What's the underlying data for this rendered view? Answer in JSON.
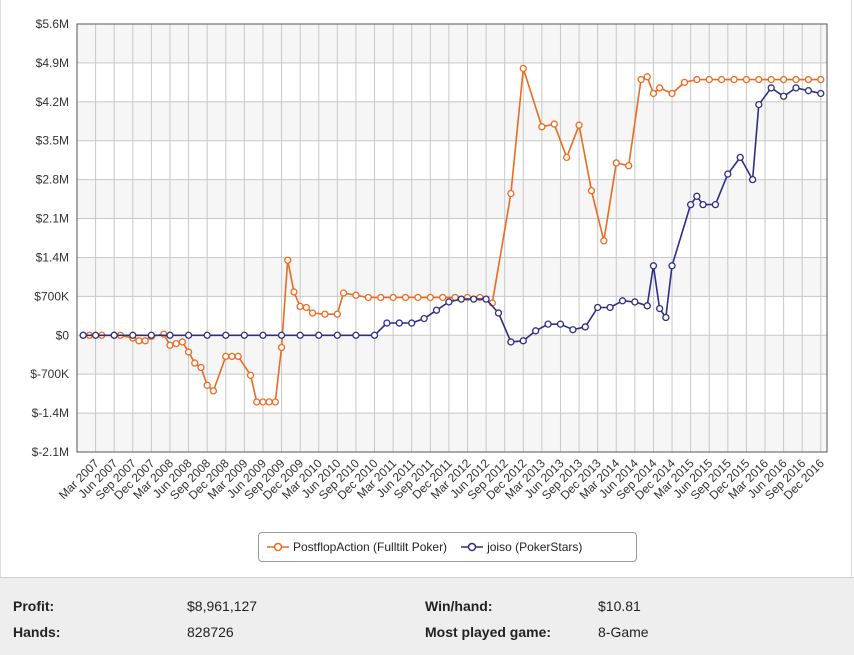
{
  "chart_data": {
    "type": "line",
    "ylabel": "",
    "xlabel": "",
    "ylim": [
      -2100000,
      5600000
    ],
    "y_ticks": [
      "$5.6M",
      "$4.9M",
      "$4.2M",
      "$3.5M",
      "$2.8M",
      "$2.1M",
      "$1.4M",
      "$700K",
      "$0",
      "$-700K",
      "$-1.4M",
      "$-2.1M"
    ],
    "y_tick_values": [
      5600000,
      4900000,
      4200000,
      3500000,
      2800000,
      2100000,
      1400000,
      700000,
      0,
      -700000,
      -1400000,
      -2100000
    ],
    "x_range": [
      "2006-12",
      "2017-01"
    ],
    "x_ticks": [
      "Mar 2007",
      "Jun 2007",
      "Sep 2007",
      "Dec 2007",
      "Mar 2008",
      "Jun 2008",
      "Sep 2008",
      "Dec 2008",
      "Mar 2009",
      "Jun 2009",
      "Sep 2009",
      "Dec 2009",
      "Mar 2010",
      "Jun 2010",
      "Sep 2010",
      "Dec 2010",
      "Mar 2011",
      "Jun 2011",
      "Sep 2011",
      "Dec 2011",
      "Mar 2012",
      "Jun 2012",
      "Sep 2012",
      "Dec 2012",
      "Mar 2013",
      "Jun 2013",
      "Sep 2013",
      "Dec 2013",
      "Mar 2014",
      "Jun 2014",
      "Sep 2014",
      "Dec 2014",
      "Mar 2015",
      "Jun 2015",
      "Sep 2015",
      "Dec 2015",
      "Mar 2016",
      "Jun 2016",
      "Sep 2016",
      "Dec 2016"
    ],
    "x_tick_values": [
      "2007-03",
      "2007-06",
      "2007-09",
      "2007-12",
      "2008-03",
      "2008-06",
      "2008-09",
      "2008-12",
      "2009-03",
      "2009-06",
      "2009-09",
      "2009-12",
      "2010-03",
      "2010-06",
      "2010-09",
      "2010-12",
      "2011-03",
      "2011-06",
      "2011-09",
      "2011-12",
      "2012-03",
      "2012-06",
      "2012-09",
      "2012-12",
      "2013-03",
      "2013-06",
      "2013-09",
      "2013-12",
      "2014-03",
      "2014-06",
      "2014-09",
      "2014-12",
      "2015-03",
      "2015-06",
      "2015-09",
      "2015-12",
      "2016-03",
      "2016-06",
      "2016-09",
      "2016-12"
    ],
    "grid": true,
    "legend_position": "bottom-center",
    "series": [
      {
        "name": "PostflopAction (Fulltilt Poker)",
        "color": "#ed6a1f",
        "points": [
          [
            "2007-01",
            0
          ],
          [
            "2007-02",
            0
          ],
          [
            "2007-04",
            0
          ],
          [
            "2007-06",
            0
          ],
          [
            "2007-07",
            0
          ],
          [
            "2007-09",
            -50000
          ],
          [
            "2007-10",
            -100000
          ],
          [
            "2007-11",
            -100000
          ],
          [
            "2007-12",
            -20000
          ],
          [
            "2008-02",
            20000
          ],
          [
            "2008-03",
            -180000
          ],
          [
            "2008-04",
            -150000
          ],
          [
            "2008-05",
            -120000
          ],
          [
            "2008-06",
            -300000
          ],
          [
            "2008-07",
            -500000
          ],
          [
            "2008-08",
            -580000
          ],
          [
            "2008-09",
            -900000
          ],
          [
            "2008-10",
            -1000000
          ],
          [
            "2008-12",
            -380000
          ],
          [
            "2009-01",
            -380000
          ],
          [
            "2009-02",
            -380000
          ],
          [
            "2009-04",
            -720000
          ],
          [
            "2009-05",
            -1200000
          ],
          [
            "2009-06",
            -1200000
          ],
          [
            "2009-07",
            -1200000
          ],
          [
            "2009-08",
            -1200000
          ],
          [
            "2009-09",
            -220000
          ],
          [
            "2009-10",
            1350000
          ],
          [
            "2009-11",
            780000
          ],
          [
            "2009-12",
            520000
          ],
          [
            "2010-01",
            500000
          ],
          [
            "2010-02",
            400000
          ],
          [
            "2010-04",
            380000
          ],
          [
            "2010-06",
            380000
          ],
          [
            "2010-07",
            760000
          ],
          [
            "2010-09",
            720000
          ],
          [
            "2010-11",
            680000
          ],
          [
            "2011-01",
            680000
          ],
          [
            "2011-03",
            680000
          ],
          [
            "2011-05",
            680000
          ],
          [
            "2011-07",
            680000
          ],
          [
            "2011-09",
            680000
          ],
          [
            "2011-11",
            680000
          ],
          [
            "2012-01",
            680000
          ],
          [
            "2012-03",
            680000
          ],
          [
            "2012-05",
            680000
          ],
          [
            "2012-07",
            580000
          ],
          [
            "2012-10",
            2550000
          ],
          [
            "2012-12",
            4800000
          ],
          [
            "2013-03",
            3750000
          ],
          [
            "2013-05",
            3800000
          ],
          [
            "2013-07",
            3200000
          ],
          [
            "2013-09",
            3780000
          ],
          [
            "2013-11",
            2600000
          ],
          [
            "2014-01",
            1700000
          ],
          [
            "2014-03",
            3100000
          ],
          [
            "2014-05",
            3050000
          ],
          [
            "2014-07",
            4600000
          ],
          [
            "2014-08",
            4650000
          ],
          [
            "2014-09",
            4350000
          ],
          [
            "2014-10",
            4450000
          ],
          [
            "2014-12",
            4350000
          ],
          [
            "2015-02",
            4550000
          ],
          [
            "2015-04",
            4600000
          ],
          [
            "2015-06",
            4600000
          ],
          [
            "2015-08",
            4600000
          ],
          [
            "2015-10",
            4600000
          ],
          [
            "2015-12",
            4600000
          ],
          [
            "2016-02",
            4600000
          ],
          [
            "2016-04",
            4600000
          ],
          [
            "2016-06",
            4600000
          ],
          [
            "2016-08",
            4600000
          ],
          [
            "2016-10",
            4600000
          ],
          [
            "2016-12",
            4600000
          ]
        ]
      },
      {
        "name": "joiso (PokerStars)",
        "color": "#2b2f86",
        "points": [
          [
            "2007-01",
            0
          ],
          [
            "2007-03",
            0
          ],
          [
            "2007-06",
            0
          ],
          [
            "2007-09",
            0
          ],
          [
            "2007-12",
            0
          ],
          [
            "2008-03",
            0
          ],
          [
            "2008-06",
            0
          ],
          [
            "2008-09",
            0
          ],
          [
            "2008-12",
            0
          ],
          [
            "2009-03",
            0
          ],
          [
            "2009-06",
            0
          ],
          [
            "2009-09",
            0
          ],
          [
            "2009-12",
            0
          ],
          [
            "2010-03",
            0
          ],
          [
            "2010-06",
            0
          ],
          [
            "2010-09",
            0
          ],
          [
            "2010-12",
            0
          ],
          [
            "2011-02",
            220000
          ],
          [
            "2011-04",
            220000
          ],
          [
            "2011-06",
            220000
          ],
          [
            "2011-08",
            300000
          ],
          [
            "2011-10",
            450000
          ],
          [
            "2011-12",
            600000
          ],
          [
            "2012-02",
            650000
          ],
          [
            "2012-04",
            650000
          ],
          [
            "2012-06",
            650000
          ],
          [
            "2012-08",
            400000
          ],
          [
            "2012-10",
            -120000
          ],
          [
            "2012-12",
            -100000
          ],
          [
            "2013-02",
            80000
          ],
          [
            "2013-04",
            200000
          ],
          [
            "2013-06",
            200000
          ],
          [
            "2013-08",
            100000
          ],
          [
            "2013-10",
            150000
          ],
          [
            "2013-12",
            500000
          ],
          [
            "2014-02",
            500000
          ],
          [
            "2014-04",
            620000
          ],
          [
            "2014-06",
            600000
          ],
          [
            "2014-08",
            530000
          ],
          [
            "2014-09",
            1250000
          ],
          [
            "2014-10",
            480000
          ],
          [
            "2014-11",
            320000
          ],
          [
            "2014-12",
            1250000
          ],
          [
            "2015-03",
            2350000
          ],
          [
            "2015-04",
            2500000
          ],
          [
            "2015-05",
            2350000
          ],
          [
            "2015-07",
            2350000
          ],
          [
            "2015-09",
            2900000
          ],
          [
            "2015-11",
            3200000
          ],
          [
            "2016-01",
            2800000
          ],
          [
            "2016-02",
            4150000
          ],
          [
            "2016-04",
            4450000
          ],
          [
            "2016-06",
            4300000
          ],
          [
            "2016-08",
            4450000
          ],
          [
            "2016-10",
            4400000
          ],
          [
            "2016-12",
            4350000
          ]
        ]
      }
    ]
  },
  "stats": {
    "profit_label": "Profit:",
    "profit_value": "$8,961,127",
    "hands_label": "Hands:",
    "hands_value": "828726",
    "winhand_label": "Win/hand:",
    "winhand_value": "$10.81",
    "game_label": "Most played game:",
    "game_value": "8-Game"
  }
}
